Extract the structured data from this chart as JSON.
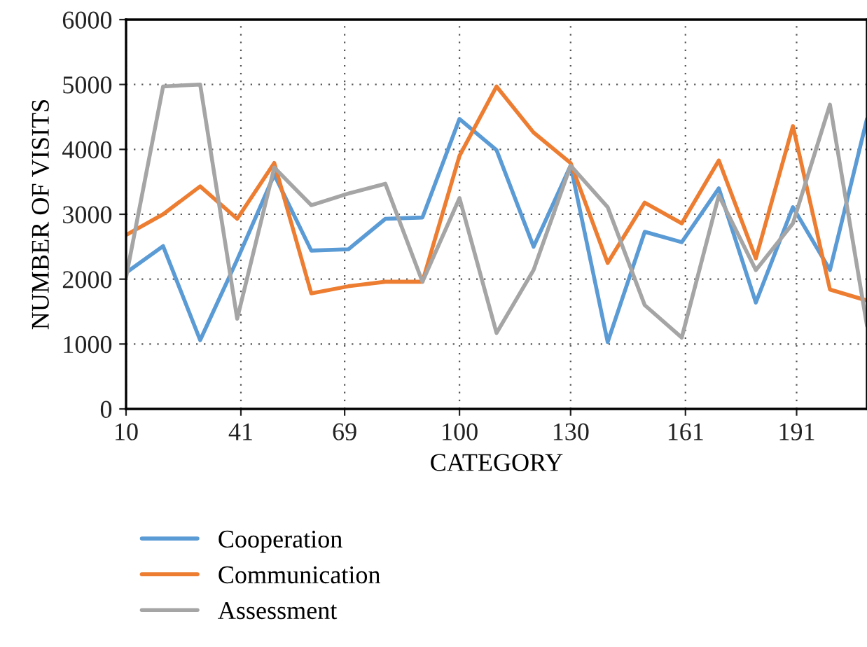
{
  "chart_data": {
    "type": "line",
    "xlabel": "CATEGORY",
    "ylabel": "NUMBER OF VISITS",
    "x": [
      10,
      20,
      30,
      40,
      50,
      60,
      70,
      80,
      90,
      100,
      110,
      120,
      130,
      140,
      150,
      160,
      170,
      180,
      190,
      200,
      210
    ],
    "series": [
      {
        "name": "Cooperation",
        "color": "#5b9bd5",
        "values": [
          2100,
          2510,
          1060,
          2300,
          3610,
          2440,
          2460,
          2930,
          2950,
          4470,
          3990,
          2500,
          3750,
          1030,
          2730,
          2570,
          3400,
          1640,
          3110,
          2140,
          4470
        ]
      },
      {
        "name": "Communication",
        "color": "#ed7d31",
        "values": [
          2680,
          3000,
          3430,
          2930,
          3790,
          1780,
          1890,
          1960,
          1960,
          3900,
          4970,
          4260,
          3790,
          2250,
          3180,
          2860,
          3830,
          2320,
          4360,
          1840,
          1670
        ]
      },
      {
        "name": "Assessment",
        "color": "#a5a5a5",
        "values": [
          2030,
          4970,
          5000,
          1390,
          3720,
          3140,
          3320,
          3470,
          1960,
          3250,
          1170,
          2140,
          3750,
          3110,
          1600,
          1100,
          3290,
          2140,
          2860,
          4690,
          1280
        ]
      }
    ],
    "xlim": [
      10,
      210
    ],
    "xticks": [
      10,
      41,
      69,
      100,
      130,
      161,
      191
    ],
    "ylim": [
      0,
      6000
    ],
    "yticks": [
      0,
      1000,
      2000,
      3000,
      4000,
      5000,
      6000
    ],
    "grid": true,
    "line_style": "solid",
    "marker": "none",
    "legend": "bottom left"
  }
}
